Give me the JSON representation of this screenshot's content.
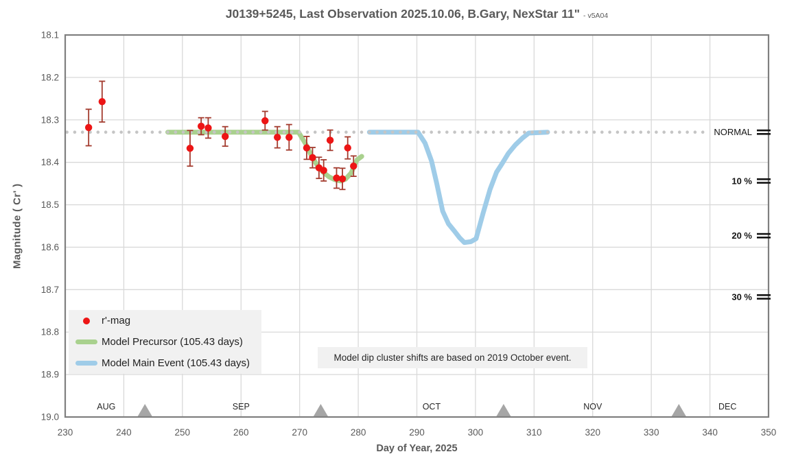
{
  "title": {
    "main": "J0139+5245, Last Observation 2025.10.06, B.Gary, NexStar 11\"",
    "suffix": "- v5A04"
  },
  "axes": {
    "x_label": "Day of Year, 2025",
    "y_label": "Magnitude ( Cr' )"
  },
  "legend": {
    "items": [
      {
        "label": "r'-mag",
        "marker": "dot",
        "color": "#ed1515"
      },
      {
        "label": "Model Precursor (105.43 days)",
        "marker": "line",
        "color": "#a9d18e"
      },
      {
        "label": "Model Main Event (105.43 days)",
        "marker": "line",
        "color": "#9fcce8"
      }
    ]
  },
  "annotation": "Model dip cluster shifts are based on 2019 October event.",
  "colors": {
    "title_text": "#595959",
    "tick_text": "#595959",
    "gridline": "#d9d9d9",
    "plot_border": "#7f7f7f",
    "normal_dotted": "#c5c5c5",
    "data_point": "#ed1515",
    "error_bar": "#a33b2e",
    "precursor_line": "#a9d18e",
    "main_event_line": "#9fcce8",
    "triangle": "#a6a6a6",
    "depth_marker": "#141414",
    "legend_bg": "#f1f1f1"
  },
  "chart_data": {
    "type": "scatter",
    "title": "J0139+5245, Last Observation 2025.10.06, B.Gary, NexStar 11\"",
    "xlabel": "Day of Year, 2025",
    "ylabel": "Magnitude ( Cr' )",
    "grid": true,
    "legend_position": "lower-left-inside",
    "x_axis": {
      "min": 230,
      "max": 350,
      "ticks": [
        230,
        240,
        250,
        260,
        270,
        280,
        290,
        300,
        310,
        320,
        330,
        340,
        350
      ]
    },
    "y_axis": {
      "min": 18.1,
      "max": 19.0,
      "inverted": true,
      "ticks": [
        "18.1",
        "18.2",
        "18.3",
        "18.4",
        "18.5",
        "18.6",
        "18.7",
        "18.8",
        "18.9",
        "19.0"
      ]
    },
    "normal_line": {
      "level": 18.329,
      "style": "dotted",
      "color": "#c5c5c5",
      "start_day": 230.3,
      "end_day": 340.1
    },
    "months": [
      {
        "label": "AUG",
        "day": 237.0
      },
      {
        "label": "SEP",
        "day": 260.0
      },
      {
        "label": "OCT",
        "day": 292.5
      },
      {
        "label": "NOV",
        "day": 320.0
      },
      {
        "label": "DEC",
        "day": 343.0
      }
    ],
    "month_end_markers_day": [
      243.6,
      273.6,
      304.8,
      334.7
    ],
    "depth_scale": [
      {
        "label": "NORMAL",
        "mag": 18.329,
        "bold": false
      },
      {
        "label": "10 %",
        "mag": 18.444,
        "bold": true
      },
      {
        "label": "20 %",
        "mag": 18.573,
        "bold": true
      },
      {
        "label": "30 %",
        "mag": 18.717,
        "bold": true
      }
    ],
    "series": [
      {
        "name": "r'-mag",
        "type": "scatter",
        "color": "#ed1515",
        "error_bar_color": "#a33b2e",
        "points": [
          {
            "day": 234.0,
            "mag": 18.318,
            "err": 0.043
          },
          {
            "day": 236.3,
            "mag": 18.257,
            "err": 0.048
          },
          {
            "day": 251.3,
            "mag": 18.367,
            "err": 0.042
          },
          {
            "day": 253.2,
            "mag": 18.315,
            "err": 0.02
          },
          {
            "day": 254.4,
            "mag": 18.319,
            "err": 0.024
          },
          {
            "day": 257.3,
            "mag": 18.339,
            "err": 0.023
          },
          {
            "day": 264.1,
            "mag": 18.302,
            "err": 0.022
          },
          {
            "day": 266.2,
            "mag": 18.341,
            "err": 0.025
          },
          {
            "day": 268.2,
            "mag": 18.341,
            "err": 0.03
          },
          {
            "day": 271.2,
            "mag": 18.366,
            "err": 0.027
          },
          {
            "day": 272.2,
            "mag": 18.389,
            "err": 0.024
          },
          {
            "day": 273.3,
            "mag": 18.413,
            "err": 0.025
          },
          {
            "day": 274.1,
            "mag": 18.419,
            "err": 0.025
          },
          {
            "day": 275.2,
            "mag": 18.348,
            "err": 0.024
          },
          {
            "day": 276.3,
            "mag": 18.437,
            "err": 0.024
          },
          {
            "day": 277.3,
            "mag": 18.439,
            "err": 0.025
          },
          {
            "day": 278.2,
            "mag": 18.366,
            "err": 0.026
          },
          {
            "day": 279.2,
            "mag": 18.409,
            "err": 0.024
          }
        ]
      },
      {
        "name": "Model Precursor (105.43 days)",
        "type": "line",
        "color": "#a9d18e",
        "width": 7,
        "points": [
          [
            247.5,
            18.329
          ],
          [
            269.8,
            18.329
          ],
          [
            271.0,
            18.356
          ],
          [
            272.0,
            18.384
          ],
          [
            273.0,
            18.407
          ],
          [
            274.0,
            18.423
          ],
          [
            275.0,
            18.434
          ],
          [
            276.0,
            18.441
          ],
          [
            277.0,
            18.444
          ],
          [
            277.8,
            18.44
          ],
          [
            278.8,
            18.425
          ],
          [
            279.8,
            18.394
          ],
          [
            280.6,
            18.386
          ]
        ]
      },
      {
        "name": "Model Main Event (105.43 days)",
        "type": "line",
        "color": "#9fcce8",
        "width": 7,
        "points": [
          [
            281.9,
            18.329
          ],
          [
            290.2,
            18.329
          ],
          [
            291.4,
            18.355
          ],
          [
            292.5,
            18.397
          ],
          [
            293.4,
            18.45
          ],
          [
            294.4,
            18.515
          ],
          [
            295.4,
            18.545
          ],
          [
            296.4,
            18.562
          ],
          [
            297.3,
            18.578
          ],
          [
            298.1,
            18.589
          ],
          [
            299.2,
            18.587
          ],
          [
            300.1,
            18.58
          ],
          [
            301.3,
            18.52
          ],
          [
            302.5,
            18.463
          ],
          [
            303.6,
            18.423
          ],
          [
            304.5,
            18.404
          ],
          [
            305.6,
            18.379
          ],
          [
            306.8,
            18.359
          ],
          [
            308.0,
            18.343
          ],
          [
            309.1,
            18.331
          ],
          [
            312.3,
            18.329
          ]
        ]
      }
    ]
  }
}
